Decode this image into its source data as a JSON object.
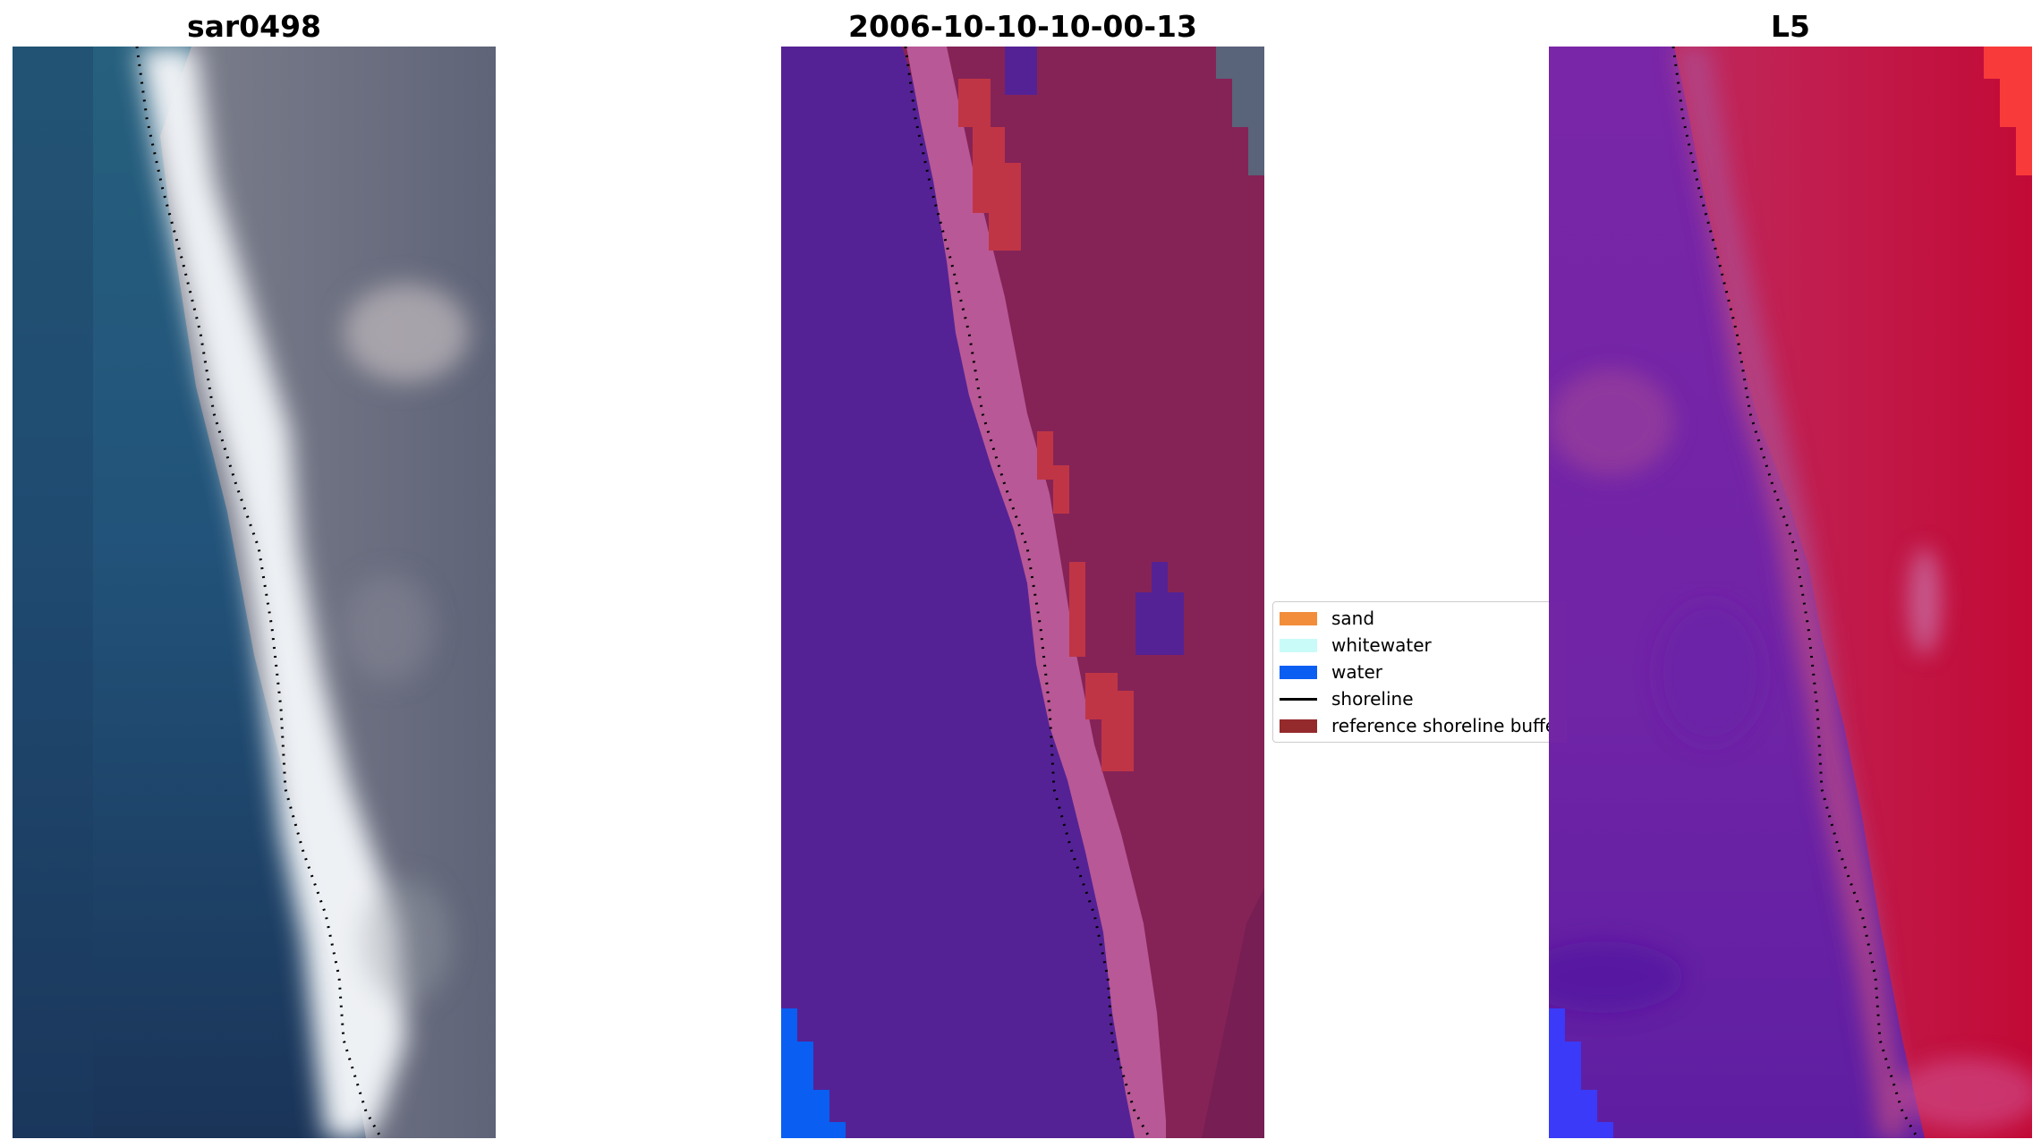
{
  "panels": [
    {
      "title": "sar0498",
      "kind": "rgb"
    },
    {
      "title": "2006-10-10-10-00-13",
      "kind": "classified"
    },
    {
      "title": "L5",
      "kind": "index"
    }
  ],
  "legend": {
    "items": [
      {
        "label": "sand",
        "color": "#f28d3c",
        "type": "patch"
      },
      {
        "label": "whitewater",
        "color": "#c9fbf8",
        "type": "patch"
      },
      {
        "label": "water",
        "color": "#0a5ef2",
        "type": "patch"
      },
      {
        "label": "shoreline",
        "color": "#000000",
        "type": "line"
      },
      {
        "label": "reference shoreline buffer",
        "color": "#942a2c",
        "type": "patch"
      }
    ]
  },
  "colors": {
    "rgb_water_shallow": "#23587a",
    "rgb_water_deep": "#1c3658",
    "rgb_whitewater": "#f2f4f6",
    "rgb_land": "#6b6f80",
    "class_water": "#542295",
    "class_buffer": "#852357",
    "class_beach_pink": "#b85896",
    "class_red": "#c03545",
    "class_slate": "#59637a",
    "class_water_blue": "#0a5ef2",
    "index_purple": "#7424a4",
    "index_red": "#c81040",
    "index_pink": "#b04488",
    "index_bright_red": "#f83a3a",
    "index_blue": "#3a3af8"
  }
}
